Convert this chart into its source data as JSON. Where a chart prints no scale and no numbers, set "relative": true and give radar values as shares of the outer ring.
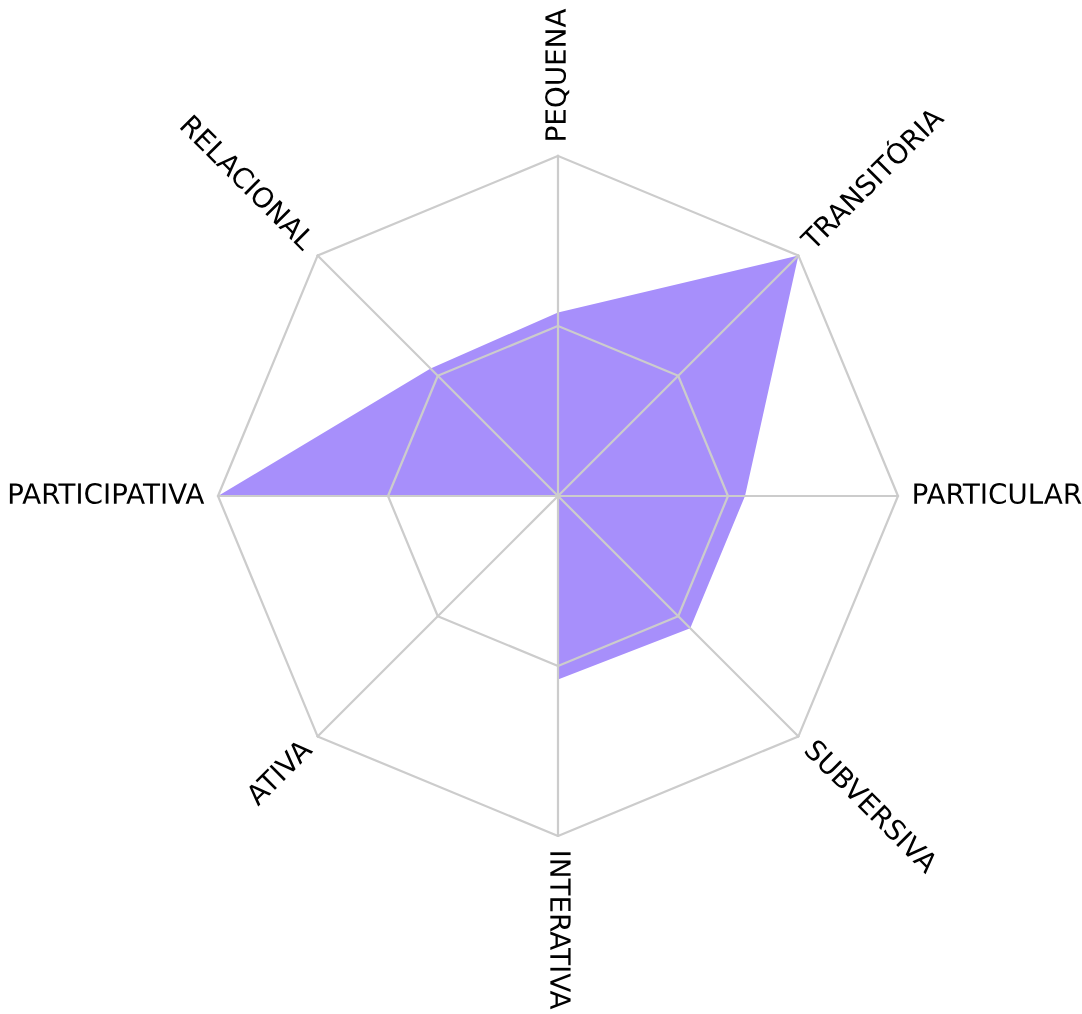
{
  "chart_data": {
    "type": "radar",
    "relative": true,
    "grid": true,
    "categories": [
      "PEQUENA",
      "TRANSITÓRIA",
      "PARTICULAR",
      "SUBVERSIVA",
      "INTERATIVA",
      "ATIVA",
      "PARTICIPATIVA",
      "RELACIONAL"
    ],
    "series": [
      {
        "color": "#a78ffb",
        "values": [
          0.54,
          1.0,
          0.55,
          0.55,
          0.54,
          0,
          1.0,
          0.53
        ]
      }
    ]
  }
}
